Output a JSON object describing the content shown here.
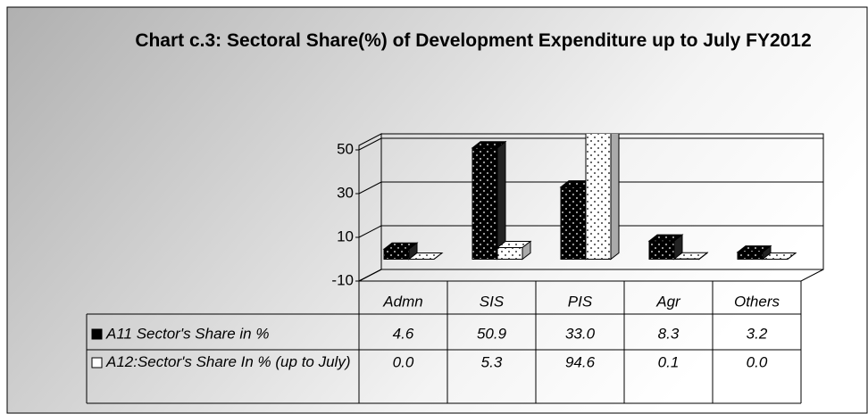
{
  "chart_data": {
    "type": "bar3d",
    "title": "Chart c.3: Sectoral Share(%) of Development Expenditure up to July FY2012",
    "categories": [
      "Admn",
      "SIS",
      "PIS",
      "Agr",
      "Others"
    ],
    "series": [
      {
        "name": "A11 Sector's Share in %",
        "color": "#000000",
        "values": [
          4.6,
          50.9,
          33.0,
          8.3,
          3.2
        ],
        "value_labels": [
          "4.6",
          "50.9",
          "33.0",
          "8.3",
          "3.2"
        ]
      },
      {
        "name": "A12:Sector's Share In % (up to July)",
        "color": "#ffffff",
        "values": [
          0.0,
          5.3,
          94.6,
          0.1,
          0.0
        ],
        "value_labels": [
          "0.0",
          "5.3",
          "94.6",
          "0.1",
          "0.0"
        ]
      }
    ],
    "ylim": [
      -10,
      50
    ],
    "yticks": [
      -10,
      10,
      30,
      50
    ],
    "grid": true
  }
}
